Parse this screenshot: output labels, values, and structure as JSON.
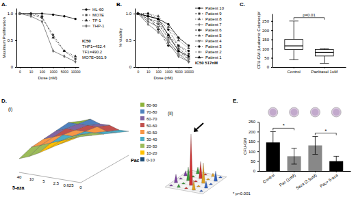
{
  "chart_data": [
    {
      "type": "line",
      "title": "A.",
      "x_label": "Dose (nM)",
      "y_label": "Maximum Proliferation",
      "categories": [
        "0",
        "10",
        "100",
        "1000",
        "5000",
        "10000"
      ],
      "ylim": [
        0,
        1.1
      ],
      "yticks": [
        0,
        0.5,
        {
          "value": 1,
          "label": "1.0"
        }
      ],
      "annotation": [
        "IC50",
        "THP1=452.4",
        "TF1=490.2",
        "MO7E=561.9"
      ],
      "series": [
        {
          "name": "HL-60",
          "color": "#000000",
          "marker": "circle",
          "line_style": "solid",
          "values": [
            1,
            1,
            1,
            0.98,
            0.95,
            0.9
          ]
        },
        {
          "name": "MO7E",
          "color": "#444444",
          "marker": "square",
          "line_style": "dashed",
          "values": [
            1,
            0.98,
            0.92,
            0.6,
            0.3,
            0.15
          ]
        },
        {
          "name": "TF-1",
          "color": "#222222",
          "marker": "triangle",
          "line_style": "dotted",
          "values": [
            1,
            1,
            0.95,
            0.55,
            0.3,
            0.2
          ]
        },
        {
          "name": "THP-1",
          "color": "#666666",
          "marker": "diamond",
          "line_style": "solid",
          "values": [
            1,
            0.95,
            0.85,
            0.3,
            0.2,
            0.1
          ]
        }
      ]
    },
    {
      "type": "line",
      "title": "B.",
      "x_label": "Dose (nM)",
      "y_label": "% Viability",
      "categories": [
        "0",
        "10",
        "100",
        "1000",
        "5000",
        "10000"
      ],
      "ylim": [
        0,
        1.1
      ],
      "yticks": [
        0,
        0.5,
        {
          "value": 1,
          "label": "1.0"
        }
      ],
      "annotation": [
        "IC50 517nM"
      ],
      "series": [
        {
          "name": "Patient 10",
          "color": "#000000",
          "marker": "circle",
          "line_style": "solid",
          "values": [
            1,
            0.95,
            0.9,
            0.8,
            0.55,
            0.4
          ]
        },
        {
          "name": "Patient 9",
          "color": "#333333",
          "marker": "square",
          "line_style": "dashed",
          "values": [
            1,
            0.9,
            0.85,
            0.6,
            0.4,
            0.25
          ]
        },
        {
          "name": "Patient 8",
          "color": "#555555",
          "marker": "triangle",
          "line_style": "dotted",
          "values": [
            1,
            1,
            0.95,
            0.75,
            0.5,
            0.35
          ]
        },
        {
          "name": "Patient 7",
          "color": "#777777",
          "marker": "diamond",
          "line_style": "solid",
          "values": [
            1,
            0.8,
            0.65,
            0.5,
            0.25,
            0.1
          ]
        },
        {
          "name": "Patient 6",
          "color": "#222222",
          "marker": "cross",
          "line_style": "dashdot",
          "values": [
            1,
            0.95,
            0.7,
            0.4,
            0.3,
            0.15
          ]
        },
        {
          "name": "Patient 5",
          "color": "#444444",
          "marker": "star",
          "line_style": "dashed",
          "values": [
            1,
            0.9,
            0.8,
            0.55,
            0.35,
            0.2
          ]
        },
        {
          "name": "Patient 4",
          "color": "#666666",
          "marker": "wye",
          "line_style": "solid",
          "values": [
            1,
            0.85,
            0.75,
            0.45,
            0.2,
            0.1
          ]
        },
        {
          "name": "Patient 3",
          "color": "#111111",
          "marker": "circle",
          "line_style": "dotted",
          "values": [
            1,
            1,
            0.9,
            0.7,
            0.4,
            0.3
          ]
        },
        {
          "name": "Patient 2",
          "color": "#888888",
          "marker": "square",
          "line_style": "dashdot",
          "values": [
            1,
            0.9,
            0.85,
            0.5,
            0.25,
            0.15
          ]
        },
        {
          "name": "Patient 1",
          "color": "#000000",
          "marker": "triangle",
          "line_style": "solid",
          "values": [
            1,
            0.95,
            0.9,
            0.6,
            0.3,
            0.2
          ]
        }
      ]
    },
    {
      "type": "box",
      "title": "C.",
      "y_label": "CFU-GM (Leukemic Colonies)#",
      "categories": [
        "Control",
        "Paclitaxel 1uM"
      ],
      "boxes": [
        {
          "min": 40,
          "q1": 95,
          "median": 115,
          "q3": 150,
          "max": 250
        },
        {
          "min": 20,
          "q1": 60,
          "median": 80,
          "q3": 95,
          "max": 100
        }
      ],
      "ylim": [
        0,
        290
      ],
      "yticks": [
        0,
        50,
        100,
        150,
        200,
        250
      ],
      "annotation": "p=0.01"
    },
    {
      "type": "surface",
      "title": "D.",
      "subtitle": "(i)",
      "x_label": "5-aza",
      "y_label": "Pac",
      "categories": [
        "40",
        "10",
        "5",
        "2.5",
        "0.625",
        "0"
      ],
      "tick_labels": "x",
      "values": [
        [
          20,
          15,
          12,
          10,
          8,
          5
        ],
        [
          40,
          35,
          30,
          25,
          20,
          15
        ],
        [
          55,
          50,
          45,
          35,
          30,
          20
        ],
        [
          70,
          65,
          55,
          45,
          35,
          25
        ],
        [
          85,
          75,
          65,
          55,
          40,
          30
        ],
        [
          90,
          85,
          70,
          60,
          45,
          35
        ]
      ],
      "bands": [
        {
          "label": "80-90",
          "lo": 80,
          "hi": 90,
          "color": "#8db33a"
        },
        {
          "label": "70-80",
          "lo": 70,
          "hi": 80,
          "color": "#4f81bd"
        },
        {
          "label": "60-70",
          "lo": 60,
          "hi": 70,
          "color": "#8064a2"
        },
        {
          "label": "50-60",
          "lo": 50,
          "hi": 60,
          "color": "#c0504d"
        },
        {
          "label": "40-50",
          "lo": 40,
          "hi": 50,
          "color": "#f79646"
        },
        {
          "label": "30-40",
          "lo": 30,
          "hi": 40,
          "color": "#4bacc6"
        },
        {
          "label": "20-30",
          "lo": 20,
          "hi": 30,
          "color": "#9bbb59"
        },
        {
          "label": "10-20",
          "lo": 10,
          "hi": 20,
          "color": "#ffc000"
        },
        {
          "label": "0-10",
          "lo": 0,
          "hi": 10,
          "color": "#1f4e79"
        }
      ]
    },
    {
      "type": "spike",
      "subtitle": "(ii)",
      "tick_labels": false,
      "values": [
        [
          1,
          5,
          1,
          3,
          1
        ],
        [
          2,
          1,
          8,
          1,
          4
        ],
        [
          1,
          30,
          1,
          10,
          1
        ],
        [
          6,
          1,
          12,
          1,
          2
        ],
        [
          1,
          4,
          1,
          6,
          1
        ]
      ],
      "colors": [
        "#7b3fa0",
        "#3a9a3a",
        "#d03030",
        "#e0a020",
        "#3060c0"
      ]
    },
    {
      "type": "bar",
      "title": "E.",
      "y_label": "CFU-GM",
      "categories": [
        "Control",
        "Pac (1nM)",
        "5aza (2.5uM)",
        "Pac+ 5-aza"
      ],
      "values": [
        145,
        75,
        130,
        50
      ],
      "errors": [
        55,
        40,
        45,
        25
      ],
      "colors": [
        "#000000",
        "#888888",
        "#888888",
        "#000000"
      ],
      "ylim": [
        0,
        250
      ],
      "yticks": [
        0,
        50,
        100,
        150,
        200,
        250
      ],
      "annotation": "* p<0.001",
      "significance": [
        {
          "from": 0,
          "to": 1,
          "label": "*"
        },
        {
          "from": 2,
          "to": 3,
          "label": "*"
        }
      ]
    }
  ]
}
